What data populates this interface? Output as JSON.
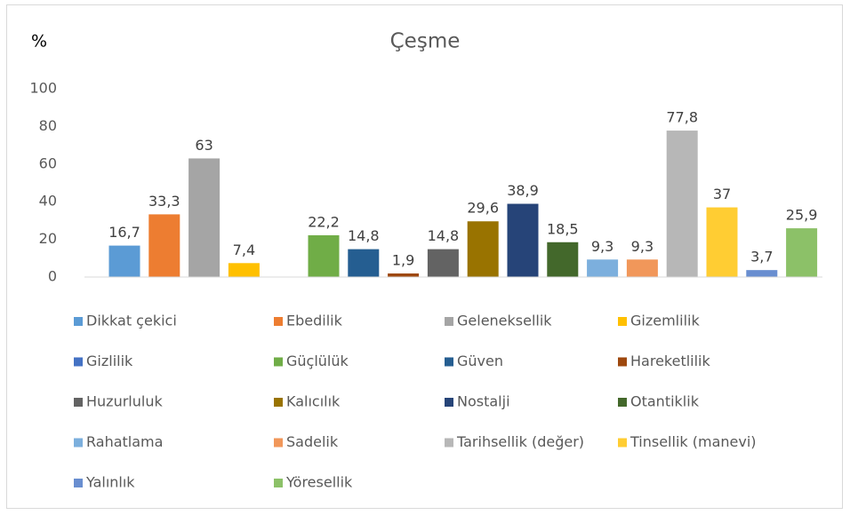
{
  "chart_data": {
    "type": "bar",
    "title": "Çeşme",
    "y_label": "%",
    "ylim": [
      0,
      100
    ],
    "yticks": [
      0,
      20,
      40,
      60,
      80,
      100
    ],
    "grid": false,
    "legend": "bottom",
    "series": [
      {
        "name": "Dikkat çekici",
        "color": "#5b9bd5",
        "values": [
          16.7
        ],
        "value_labels": [
          "16,7"
        ]
      },
      {
        "name": "Ebedilik",
        "color": "#ed7d31",
        "values": [
          33.3
        ],
        "value_labels": [
          "33,3"
        ]
      },
      {
        "name": "Geleneksellik",
        "color": "#a5a5a5",
        "values": [
          63
        ]
      },
      {
        "name": "Gizemlilik",
        "color": "#ffc000",
        "values": [
          7.4
        ],
        "value_labels": [
          "7,4"
        ]
      },
      {
        "name": "Gizlilik",
        "color": "#4472c4",
        "values": [
          null
        ]
      },
      {
        "name": "Güçlülük",
        "color": "#70ad47",
        "values": [
          22.2
        ],
        "value_labels": [
          "22,2"
        ]
      },
      {
        "name": "Güven",
        "color": "#255e91",
        "values": [
          14.8
        ],
        "value_labels": [
          "14,8"
        ]
      },
      {
        "name": "Hareketlilik",
        "color": "#9e480e",
        "values": [
          1.9
        ],
        "value_labels": [
          "1,9"
        ]
      },
      {
        "name": "Huzurluluk",
        "color": "#636363",
        "values": [
          14.8
        ],
        "value_labels": [
          "14,8"
        ]
      },
      {
        "name": "Kalıcılık",
        "color": "#997300",
        "values": [
          29.6
        ],
        "value_labels": [
          "29,6"
        ]
      },
      {
        "name": "Nostalji",
        "color": "#264478",
        "values": [
          38.9
        ],
        "value_labels": [
          "38,9"
        ]
      },
      {
        "name": "Otantiklik",
        "color": "#43682b",
        "values": [
          18.5
        ],
        "value_labels": [
          "18,5"
        ]
      },
      {
        "name": "Rahatlama",
        "color": "#7cafdd",
        "values": [
          9.3
        ],
        "value_labels": [
          "9,3"
        ]
      },
      {
        "name": "Sadelik",
        "color": "#f1975a",
        "values": [
          9.3
        ],
        "value_labels": [
          "9,3"
        ]
      },
      {
        "name": "Tarihsellik (değer)",
        "color": "#b7b7b7",
        "values": [
          77.8
        ],
        "value_labels": [
          "77,8"
        ]
      },
      {
        "name": "Tinsellik (manevi)",
        "color": "#ffcd33",
        "values": [
          37
        ]
      },
      {
        "name": "Yalınlık",
        "color": "#698ed0",
        "values": [
          3.7
        ],
        "value_labels": [
          "3,7"
        ]
      },
      {
        "name": "Yöresellik",
        "color": "#8cc168",
        "values": [
          25.9
        ],
        "value_labels": [
          "25,9"
        ]
      }
    ]
  }
}
